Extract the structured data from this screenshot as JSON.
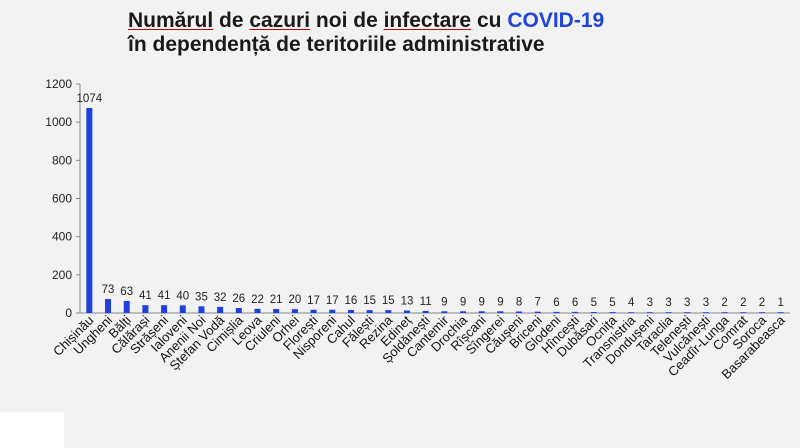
{
  "title": {
    "line1": [
      {
        "text": "Numărul",
        "style": "u"
      },
      {
        "text": " de ",
        "style": ""
      },
      {
        "text": "cazuri",
        "style": "u"
      },
      {
        "text": " noi de ",
        "style": ""
      },
      {
        "text": "infectare",
        "style": "u"
      },
      {
        "text": " cu ",
        "style": ""
      },
      {
        "text": "COVID-19",
        "style": "hl"
      }
    ],
    "line2": [
      {
        "text": "în dependență de teritoriile administrative",
        "style": ""
      }
    ]
  },
  "colors": {
    "bar": "#1f3fe0",
    "axis": "#888888",
    "title": "#1a1a1a",
    "highlight": "#2043d8",
    "underline": "#c00000"
  },
  "chart_data": {
    "type": "bar",
    "title": "Numărul de cazuri noi de infectare cu COVID-19 în dependență de teritoriile administrative",
    "ylim": [
      0,
      1200
    ],
    "yticks": [
      0,
      200,
      400,
      600,
      800,
      1000,
      1200
    ],
    "grid": false,
    "categories": [
      "Chișinău",
      "Ungheni",
      "Bălți",
      "Călărași",
      "Strășeni",
      "Ialoveni",
      "Anenii Noi",
      "Ștefan Vodă",
      "Cimișlia",
      "Leova",
      "Criuleni",
      "Orhei",
      "Florești",
      "Nisporeni",
      "Cahul",
      "Fălești",
      "Rezina",
      "Edineț",
      "Șoldănești",
      "Cantemir",
      "Drochia",
      "Rîșcani",
      "Sîngerei",
      "Căușeni",
      "Briceni",
      "Glodeni",
      "Hîncești",
      "Dubăsari",
      "Ocnița",
      "Transnistria",
      "Dondușeni",
      "Taraclia",
      "Telenești",
      "Vulcănești",
      "Ceadîr-Lunga",
      "Comrat",
      "Soroca",
      "Basarabeasca"
    ],
    "values": [
      1074,
      73,
      63,
      41,
      41,
      40,
      35,
      32,
      26,
      22,
      21,
      20,
      17,
      17,
      16,
      15,
      15,
      13,
      11,
      9,
      9,
      9,
      9,
      8,
      7,
      6,
      6,
      5,
      5,
      4,
      3,
      3,
      3,
      3,
      2,
      2,
      2,
      1
    ]
  }
}
